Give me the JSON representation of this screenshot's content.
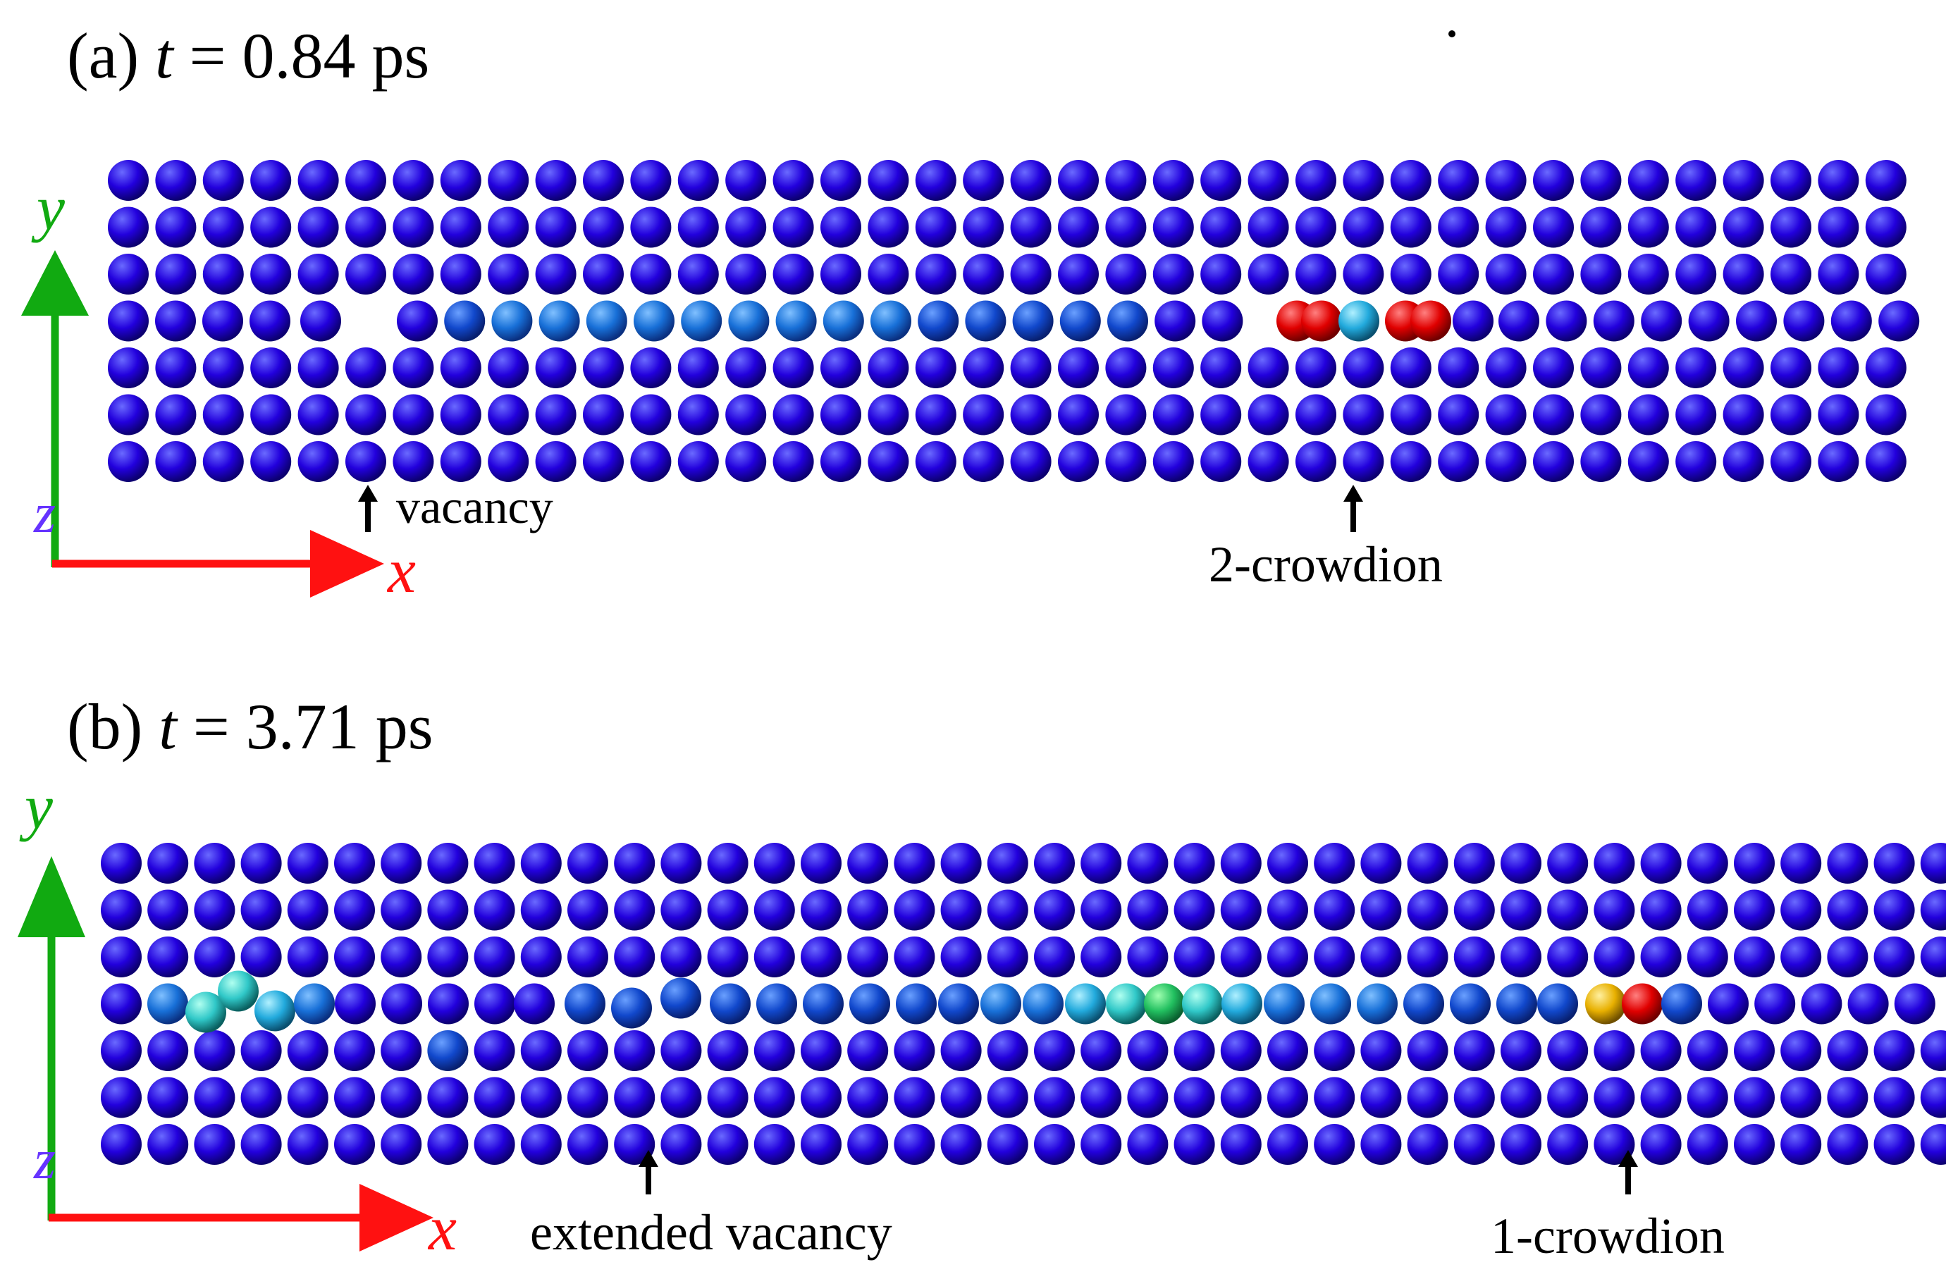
{
  "panels": [
    {
      "id": "a",
      "label": "(a)",
      "time_symbol": "t",
      "time_rest": " = 0.84 ps",
      "axes": {
        "x": "x",
        "y": "y",
        "z": "z"
      },
      "annotations": {
        "vacancy": "vacancy",
        "crowdion": "2-crowdion"
      },
      "colors": {
        "bulk": "#2200dd",
        "defect_high": "#e00000",
        "defect_mid": "#22aadd",
        "chain": "#1144cc"
      }
    },
    {
      "id": "b",
      "label": "(b)",
      "time_symbol": "t",
      "time_rest": " = 3.71 ps",
      "axes": {
        "x": "x",
        "y": "y",
        "z": "z"
      },
      "annotations": {
        "vacancy": "extended vacancy",
        "crowdion": "1-crowdion"
      },
      "colors": {
        "bulk": "#2200dd",
        "defect_high": "#e00000",
        "defect_warm": "#e8b000",
        "defect_green": "#22c060",
        "defect_cyan": "#30c8c8",
        "chain": "#1144cc"
      }
    }
  ],
  "axis_colors": {
    "x": "#ff1111",
    "y": "#11aa11",
    "z": "#6633ff"
  }
}
